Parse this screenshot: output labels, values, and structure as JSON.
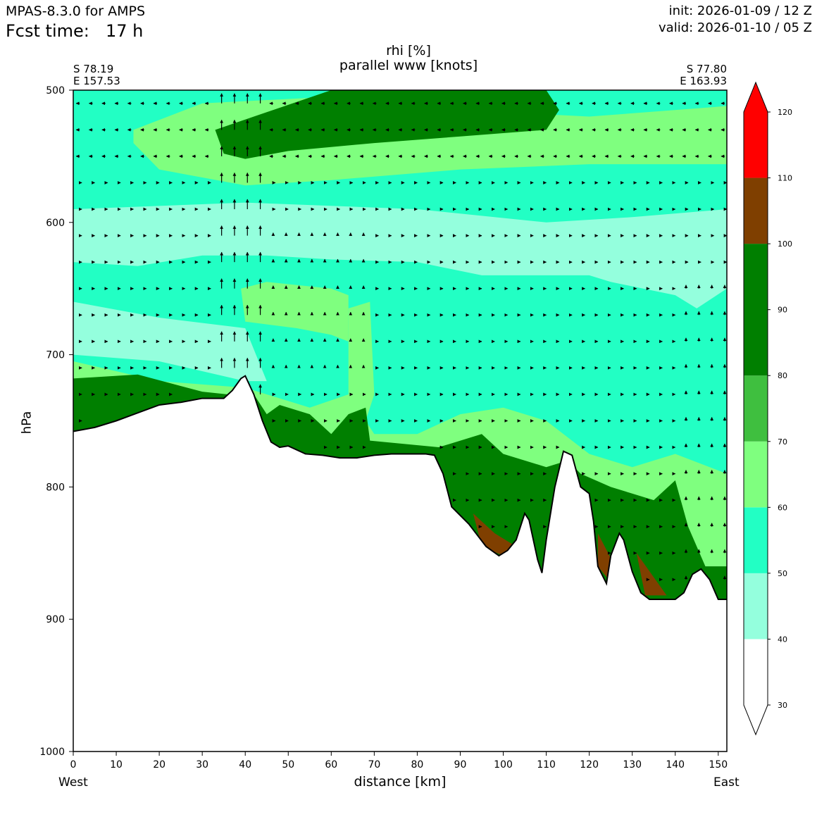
{
  "header": {
    "model": "MPAS-8.3.0 for AMPS",
    "fcst_label": "Fcst time:",
    "fcst_value": "17 h",
    "init": "init: 2026-01-09 / 12 Z",
    "valid": "valid: 2026-01-10 / 05 Z"
  },
  "chart_data": {
    "type": "contour-cross-section",
    "title": "rhi [%]",
    "subtitle": "parallel www [knots]",
    "xlabel": "distance [km]",
    "ylabel": "hPa",
    "x_range": [
      0,
      152
    ],
    "y_range": [
      1000,
      500
    ],
    "x_ticks": [
      "0",
      "10",
      "20",
      "30",
      "40",
      "50",
      "60",
      "70",
      "80",
      "90",
      "100",
      "110",
      "120",
      "130",
      "140",
      "150"
    ],
    "x_tick_values": [
      0,
      10,
      20,
      30,
      40,
      50,
      60,
      70,
      80,
      90,
      100,
      110,
      120,
      130,
      140,
      150
    ],
    "y_ticks": [
      "500",
      "600",
      "700",
      "800",
      "900",
      "1000"
    ],
    "y_tick_values": [
      500,
      600,
      700,
      800,
      900,
      1000
    ],
    "start_point": {
      "lat": "S 78.19",
      "lon": "E 157.53",
      "side": "West"
    },
    "end_point": {
      "lat": "S 77.80",
      "lon": "E 163.93",
      "side": "East"
    },
    "colorbar": {
      "levels": [
        30,
        40,
        50,
        60,
        70,
        80,
        90,
        100,
        110,
        120
      ],
      "labels": [
        "30",
        "40",
        "50",
        "60",
        "70",
        "80",
        "90",
        "100",
        "110",
        "120"
      ],
      "bins": [
        {
          "from": 30,
          "to": 40,
          "color": "#ffffff"
        },
        {
          "from": 40,
          "to": 50,
          "color": "#94ffdd"
        },
        {
          "from": 50,
          "to": 60,
          "color": "#22ffc4"
        },
        {
          "from": 60,
          "to": 70,
          "color": "#7fff7f"
        },
        {
          "from": 70,
          "to": 80,
          "color": "#3fbf3f"
        },
        {
          "from": 80,
          "to": 100,
          "color": "#007f00"
        },
        {
          "from": 100,
          "to": 110,
          "color": "#7f3f00"
        },
        {
          "from": 110,
          "to": 120,
          "color": "#ff0000"
        }
      ]
    },
    "terrain_pressure": {
      "x": [
        0,
        5,
        10,
        15,
        20,
        25,
        30,
        35,
        37,
        39,
        40,
        42,
        44,
        46,
        48,
        50,
        54,
        58,
        62,
        66,
        70,
        74,
        78,
        82,
        84,
        86,
        88,
        92,
        96,
        99,
        101,
        103,
        105,
        106,
        108,
        109,
        110,
        112,
        114,
        116,
        118,
        120,
        121,
        122,
        124,
        125,
        127,
        128,
        130,
        132,
        134,
        136,
        140,
        142,
        144,
        146,
        148,
        150,
        152
      ],
      "p": [
        758,
        755,
        750,
        744,
        738,
        736,
        733,
        733,
        727,
        718,
        716,
        730,
        750,
        766,
        770,
        769,
        775,
        776,
        778,
        778,
        776,
        775,
        775,
        775,
        776,
        790,
        815,
        828,
        845,
        852,
        848,
        840,
        820,
        825,
        855,
        865,
        840,
        800,
        773,
        776,
        800,
        805,
        826,
        860,
        873,
        852,
        835,
        840,
        864,
        880,
        885,
        885,
        885,
        880,
        866,
        862,
        870,
        885,
        885
      ]
    },
    "layers_pressure": [
      {
        "name": "upper-dry-band",
        "color": "#22ffc4",
        "top": 500,
        "bottom": 575
      },
      {
        "name": "moist-band-upper",
        "color": "#7fff7f",
        "top": 510,
        "bottom": 570
      },
      {
        "name": "saturated-core",
        "color": "#007f00",
        "top": 500,
        "bottom": 550
      },
      {
        "name": "dry-layer-mid",
        "color": "#94ffdd",
        "top": 575,
        "bottom": 645
      },
      {
        "name": "low-level-moist",
        "color": "#22ffc4",
        "top": 640,
        "bottom": 760
      }
    ],
    "wind_vectors": {
      "levels_hPa": [
        510,
        530,
        550,
        570,
        590,
        610,
        630,
        650,
        670,
        690,
        710,
        730,
        750,
        770,
        790,
        810,
        830,
        850,
        870
      ],
      "note": "parallel wind arrows; strong upward-pointing arrows near 35-45 km, weak elsewhere"
    }
  }
}
